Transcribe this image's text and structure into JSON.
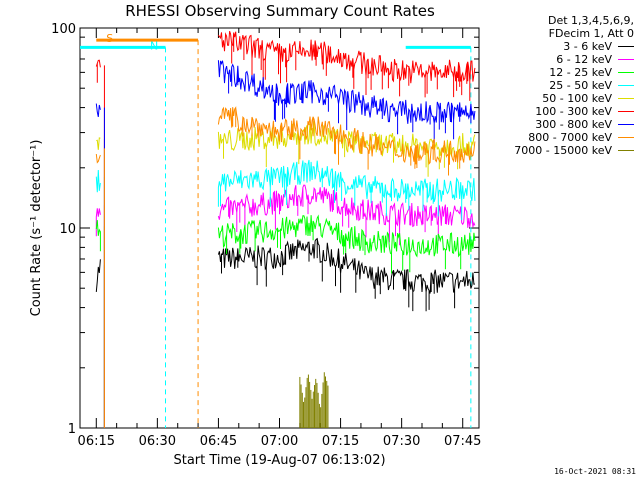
{
  "chart_data": {
    "type": "line",
    "title": "RHESSI Observing Summary Count Rates",
    "xlabel": "Start Time (19-Aug-07 06:13:02)",
    "ylabel": "Count Rate (s⁻¹ detector⁻¹)",
    "y_scale": "log",
    "ylim": [
      1,
      100
    ],
    "xlim": [
      "06:11",
      "07:49"
    ],
    "x_ticks": [
      "06:15",
      "06:30",
      "06:45",
      "07:00",
      "07:15",
      "07:30",
      "07:45"
    ],
    "y_ticks": [
      "1",
      "10",
      "100"
    ],
    "legend_header": [
      "Det 1,3,4,5,6,9,",
      "FDecim 1, Att 0"
    ],
    "series": [
      {
        "name": "3 - 6 keV",
        "color": "#000000",
        "x": [
          "06:15",
          "06:16",
          "06:45",
          "07:00",
          "07:08",
          "07:15",
          "07:21",
          "07:28",
          "07:35",
          "07:48"
        ],
        "y": [
          5.5,
          6.5,
          7.0,
          7.2,
          8.0,
          6.8,
          5.8,
          5.5,
          5.4,
          5.4
        ]
      },
      {
        "name": "6 - 12 keV",
        "color": "#ff00ff",
        "x": [
          "06:15",
          "06:16",
          "06:45",
          "07:00",
          "07:08",
          "07:15",
          "07:21",
          "07:28",
          "07:35",
          "07:48"
        ],
        "y": [
          12.5,
          13.0,
          12.2,
          13.5,
          15.0,
          13.2,
          12.2,
          11.8,
          11.6,
          11.5
        ]
      },
      {
        "name": "12 - 25 keV",
        "color": "#00ff00",
        "x": [
          "06:15",
          "06:16",
          "06:45",
          "07:00",
          "07:08",
          "07:15",
          "07:21",
          "07:28",
          "07:35",
          "07:48"
        ],
        "y": [
          9.5,
          10.2,
          9.2,
          9.8,
          10.5,
          9.3,
          8.6,
          8.3,
          8.2,
          8.3
        ]
      },
      {
        "name": "25 - 50 keV",
        "color": "#00ffff",
        "x": [
          "06:15",
          "06:16",
          "06:45",
          "07:00",
          "07:08",
          "07:15",
          "07:21",
          "07:28",
          "07:35",
          "07:48"
        ],
        "y": [
          16.5,
          18.0,
          17.0,
          17.8,
          19.5,
          17.2,
          16.0,
          15.6,
          15.4,
          15.6
        ]
      },
      {
        "name": "50 - 100 keV",
        "color": "#dddd00",
        "x": [
          "06:15",
          "06:16",
          "06:45",
          "07:00",
          "07:08",
          "07:15",
          "07:21",
          "07:28",
          "07:35",
          "07:48"
        ],
        "y": [
          26.0,
          28.0,
          27.0,
          28.5,
          30.0,
          27.5,
          26.5,
          26.0,
          25.8,
          26.0
        ]
      },
      {
        "name": "100 - 300 keV",
        "color": "#ff0000",
        "x": [
          "06:15",
          "06:16",
          "06:45",
          "07:00",
          "07:08",
          "07:15",
          "07:21",
          "07:28",
          "07:35",
          "07:48"
        ],
        "y": [
          62.0,
          65.0,
          88.0,
          74.0,
          77.0,
          72.0,
          66.0,
          62.0,
          60.0,
          61.0
        ]
      },
      {
        "name": "300 - 800 keV",
        "color": "#0000ff",
        "x": [
          "06:15",
          "06:16",
          "06:45",
          "07:00",
          "07:08",
          "07:15",
          "07:21",
          "07:28",
          "07:35",
          "07:48"
        ],
        "y": [
          38.0,
          40.0,
          62.0,
          46.0,
          48.0,
          45.0,
          41.0,
          38.5,
          37.5,
          38.0
        ]
      },
      {
        "name": "800 - 7000 keV",
        "color": "#ff8c00",
        "x": [
          "06:15",
          "06:16",
          "06:45",
          "07:00",
          "07:08",
          "07:15",
          "07:21",
          "07:28",
          "07:35",
          "07:48"
        ],
        "y": [
          23.0,
          25.0,
          37.0,
          30.0,
          32.0,
          29.5,
          26.5,
          24.5,
          24.0,
          24.5
        ]
      },
      {
        "name": "7000 - 15000 keV",
        "color": "#808000",
        "x": [
          "07:05",
          "07:06",
          "07:07",
          "07:08",
          "07:09",
          "07:10",
          "07:11",
          "07:12"
        ],
        "y": [
          1.8,
          1.3,
          1.9,
          1.4,
          1.8,
          1.2,
          1.9,
          1.6
        ]
      }
    ],
    "attenuator_bars": [
      {
        "label": "S",
        "color": "#ff8c00",
        "x_start": "06:15",
        "x_end": "06:40",
        "y": 87
      },
      {
        "label": "N",
        "color": "#00ffff",
        "x_start": "06:11",
        "x_end": "06:32",
        "y": 80
      },
      {
        "label": "",
        "color": "#00ffff",
        "x_start": "07:31",
        "x_end": "07:47",
        "y": 80
      }
    ],
    "grid": false,
    "legend_position": "top-right outside"
  },
  "footer_stamp": "16-Oct-2021 08:31"
}
